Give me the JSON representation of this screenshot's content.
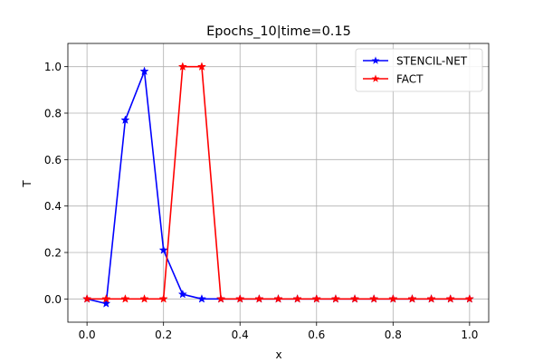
{
  "chart_data": {
    "type": "line",
    "title": "Epochs_10|time=0.15",
    "xlabel": "x",
    "ylabel": "T",
    "xlim": [
      -0.05,
      1.05
    ],
    "ylim": [
      -0.1,
      1.1
    ],
    "xticks": [
      0.0,
      0.2,
      0.4,
      0.6,
      0.8,
      1.0
    ],
    "yticks": [
      0.0,
      0.2,
      0.4,
      0.6,
      0.8,
      1.0
    ],
    "xtick_labels": [
      "0.0",
      "0.2",
      "0.4",
      "0.6",
      "0.8",
      "1.0"
    ],
    "ytick_labels": [
      "0.0",
      "0.2",
      "0.4",
      "0.6",
      "0.8",
      "1.0"
    ],
    "grid": true,
    "legend_position": "top-right",
    "x": [
      0.0,
      0.05,
      0.1,
      0.15,
      0.2,
      0.25,
      0.3,
      0.35,
      0.4,
      0.45,
      0.5,
      0.55,
      0.6,
      0.65,
      0.7,
      0.75,
      0.8,
      0.85,
      0.9,
      0.95,
      1.0
    ],
    "series": [
      {
        "name": "STENCIL-NET",
        "color": "#0000ff",
        "marker": "star",
        "values": [
          0.0,
          -0.02,
          0.77,
          0.98,
          0.21,
          0.02,
          0.0,
          0.0,
          0.0,
          0.0,
          0.0,
          0.0,
          0.0,
          0.0,
          0.0,
          0.0,
          0.0,
          0.0,
          0.0,
          0.0,
          0.0
        ]
      },
      {
        "name": "FACT",
        "color": "#ff0000",
        "marker": "star",
        "values": [
          0.0,
          0.0,
          0.0,
          0.0,
          0.0,
          1.0,
          1.0,
          0.0,
          0.0,
          0.0,
          0.0,
          0.0,
          0.0,
          0.0,
          0.0,
          0.0,
          0.0,
          0.0,
          0.0,
          0.0,
          0.0
        ]
      }
    ]
  }
}
